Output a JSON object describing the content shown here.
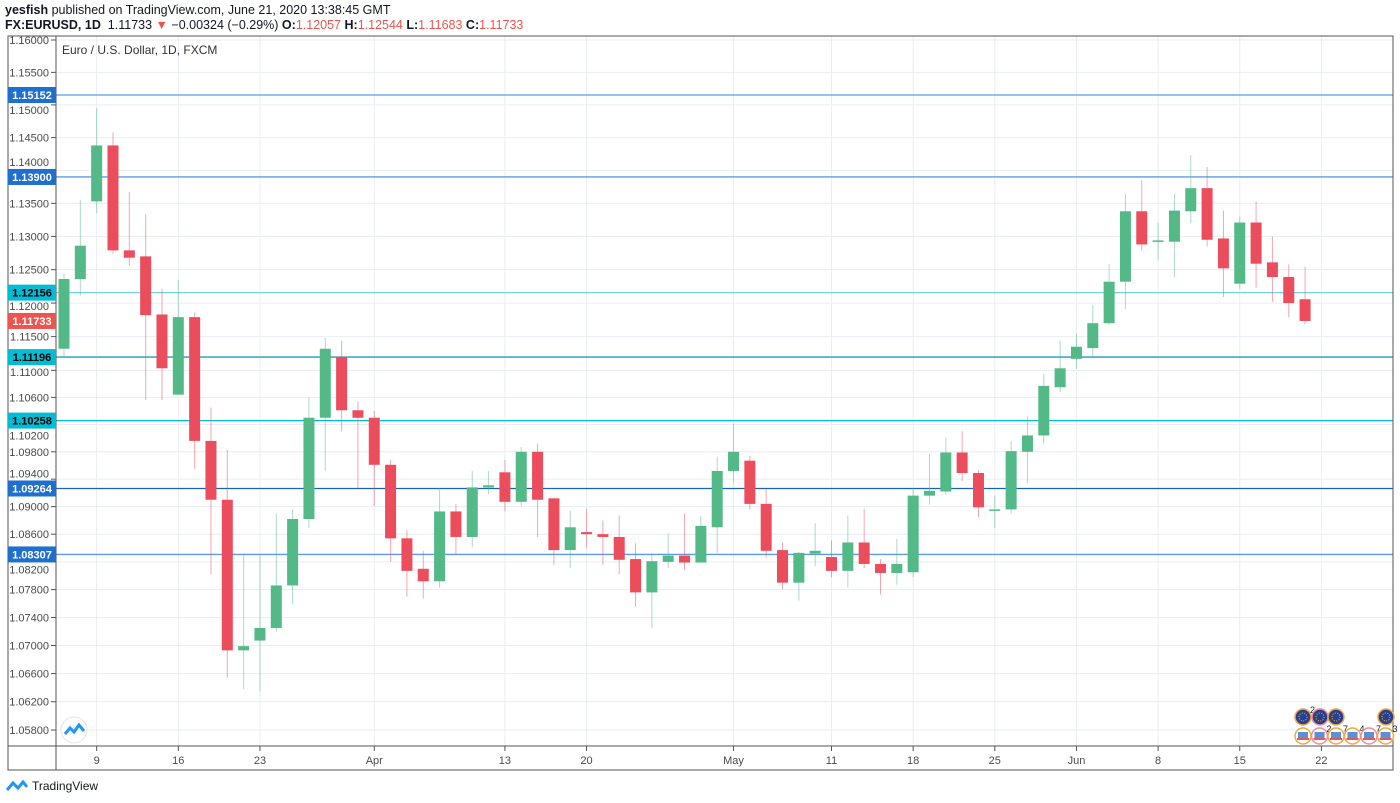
{
  "header": {
    "author": "yesfish",
    "published": "published on TradingView.com, June 21, 2020 13:38:45 GMT",
    "symbol": "FX:EURUSD, 1D",
    "last": "1.11733",
    "change": "−0.00324 (−0.29%)",
    "o_label": "O:",
    "o": "1.12057",
    "h_label": "H:",
    "h": "1.12544",
    "l_label": "L:",
    "l": "1.11683",
    "c_label": "C:",
    "c": "1.11733"
  },
  "footer": {
    "brand": "TradingView"
  },
  "colors": {
    "up": "#53b987",
    "down": "#eb4d5c",
    "blue": "#1e6fcf",
    "cyan": "#00bcd4",
    "red_label": "#ef5350",
    "grid": "#e9eef3"
  },
  "chart_data": {
    "type": "candlestick",
    "title": "Euro / U.S. Dollar, 1D, FXCM",
    "scale": "log",
    "ylim": [
      1.056,
      1.1612
    ],
    "y_ticks": [
      "1.16000",
      "1.15500",
      "1.15000",
      "1.14500",
      "1.14000",
      "1.13500",
      "1.13000",
      "1.12500",
      "1.12000",
      "1.11500",
      "1.11000",
      "1.10600",
      "1.10200",
      "1.09800",
      "1.09400",
      "1.09000",
      "1.08600",
      "1.08200",
      "1.07800",
      "1.07400",
      "1.07000",
      "1.06600",
      "1.06200",
      "1.05800"
    ],
    "x_labels": [
      {
        "label": "9",
        "bar": 2
      },
      {
        "label": "16",
        "bar": 7
      },
      {
        "label": "23",
        "bar": 12
      },
      {
        "label": "Apr",
        "bar": 19
      },
      {
        "label": "13",
        "bar": 27
      },
      {
        "label": "20",
        "bar": 32
      },
      {
        "label": "May",
        "bar": 41
      },
      {
        "label": "11",
        "bar": 47
      },
      {
        "label": "18",
        "bar": 52
      },
      {
        "label": "25",
        "bar": 57
      },
      {
        "label": "Jun",
        "bar": 62
      },
      {
        "label": "8",
        "bar": 67
      },
      {
        "label": "15",
        "bar": 72
      },
      {
        "label": "22",
        "bar": 77
      }
    ],
    "levels": [
      {
        "price": "1.15152",
        "style": "blue"
      },
      {
        "price": "1.13900",
        "style": "blue"
      },
      {
        "price": "1.12156",
        "style": "cyan-light"
      },
      {
        "price": "1.11196",
        "style": "teal"
      },
      {
        "price": "1.10258",
        "style": "cyan"
      },
      {
        "price": "1.09264",
        "style": "blue-dark"
      },
      {
        "price": "1.08307",
        "style": "blue"
      }
    ],
    "last_price": "1.11733",
    "ohlc": [
      [
        1.1132,
        1.1244,
        1.112,
        1.1236
      ],
      [
        1.1236,
        1.1355,
        1.1211,
        1.1286
      ],
      [
        1.1353,
        1.1495,
        1.1335,
        1.1438
      ],
      [
        1.1438,
        1.1458,
        1.1274,
        1.1279
      ],
      [
        1.1279,
        1.1367,
        1.1256,
        1.1268
      ],
      [
        1.127,
        1.1333,
        1.1056,
        1.1182
      ],
      [
        1.1183,
        1.1221,
        1.1056,
        1.1103
      ],
      [
        1.1064,
        1.1235,
        1.1064,
        1.1179
      ],
      [
        1.1179,
        1.1186,
        1.0955,
        1.0996
      ],
      [
        1.0996,
        1.1045,
        1.0802,
        1.091
      ],
      [
        1.091,
        1.0983,
        1.0654,
        1.0693
      ],
      [
        1.0693,
        1.0832,
        1.0638,
        1.0699
      ],
      [
        1.0707,
        1.0829,
        1.0635,
        1.0725
      ],
      [
        1.0725,
        1.089,
        1.072,
        1.0786
      ],
      [
        1.0786,
        1.0896,
        1.0759,
        1.0882
      ],
      [
        1.0882,
        1.106,
        1.0869,
        1.103
      ],
      [
        1.103,
        1.1148,
        1.0952,
        1.1132
      ],
      [
        1.112,
        1.1144,
        1.101,
        1.1041
      ],
      [
        1.1041,
        1.1054,
        1.0925,
        1.103
      ],
      [
        1.103,
        1.104,
        1.0901,
        1.0961
      ],
      [
        1.0961,
        1.0968,
        1.082,
        1.0854
      ],
      [
        1.0854,
        1.0866,
        1.077,
        1.0807
      ],
      [
        1.081,
        1.0836,
        1.0767,
        1.0792
      ],
      [
        1.0792,
        1.0927,
        1.0783,
        1.0893
      ],
      [
        1.0893,
        1.0904,
        1.083,
        1.0856
      ],
      [
        1.0856,
        1.0952,
        1.0841,
        1.0928
      ],
      [
        1.0928,
        1.0952,
        1.0918,
        1.0931
      ],
      [
        1.095,
        1.0968,
        1.0893,
        1.0907
      ],
      [
        1.0907,
        1.0987,
        1.0901,
        1.098
      ],
      [
        1.098,
        1.0992,
        1.0856,
        1.091
      ],
      [
        1.0912,
        1.0913,
        1.0816,
        1.0837
      ],
      [
        1.0837,
        1.0894,
        1.0811,
        1.087
      ],
      [
        1.0863,
        1.0897,
        1.084,
        1.086
      ],
      [
        1.086,
        1.088,
        1.0816,
        1.0856
      ],
      [
        1.0856,
        1.0887,
        1.0802,
        1.0823
      ],
      [
        1.0824,
        1.0847,
        1.0755,
        1.0776
      ],
      [
        1.0776,
        1.0832,
        1.0725,
        1.0821
      ],
      [
        1.082,
        1.0861,
        1.0811,
        1.0829
      ],
      [
        1.0829,
        1.089,
        1.0808,
        1.0819
      ],
      [
        1.0819,
        1.0887,
        1.0819,
        1.0872
      ],
      [
        1.087,
        1.0973,
        1.0833,
        1.0952
      ],
      [
        1.0952,
        1.1021,
        1.0934,
        1.098
      ],
      [
        1.0967,
        1.0974,
        1.0896,
        1.0904
      ],
      [
        1.0904,
        1.0926,
        1.0826,
        1.0836
      ],
      [
        1.0837,
        1.0848,
        1.078,
        1.079
      ],
      [
        1.079,
        1.0834,
        1.0764,
        1.0833
      ],
      [
        1.0832,
        1.0876,
        1.0814,
        1.0836
      ],
      [
        1.0827,
        1.0851,
        1.0798,
        1.0807
      ],
      [
        1.0807,
        1.0887,
        1.0783,
        1.0848
      ],
      [
        1.0848,
        1.0897,
        1.0811,
        1.0817
      ],
      [
        1.0817,
        1.0824,
        1.0773,
        1.0804
      ],
      [
        1.0804,
        1.0853,
        1.0787,
        1.0817
      ],
      [
        1.0805,
        1.0927,
        1.0798,
        1.0916
      ],
      [
        1.0916,
        1.0977,
        1.0903,
        1.0923
      ],
      [
        1.0922,
        1.1001,
        1.0917,
        1.0979
      ],
      [
        1.0979,
        1.101,
        1.0937,
        1.0949
      ],
      [
        1.0949,
        1.0953,
        1.0885,
        1.0899
      ],
      [
        1.0894,
        1.0916,
        1.0869,
        1.0896
      ],
      [
        1.0896,
        1.0996,
        1.089,
        1.0981
      ],
      [
        1.098,
        1.1032,
        1.0934,
        1.1004
      ],
      [
        1.1004,
        1.1095,
        1.0992,
        1.1077
      ],
      [
        1.1075,
        1.1144,
        1.1068,
        1.1103
      ],
      [
        1.1117,
        1.1155,
        1.1102,
        1.1135
      ],
      [
        1.1133,
        1.1197,
        1.1117,
        1.117
      ],
      [
        1.117,
        1.1258,
        1.1167,
        1.1232
      ],
      [
        1.1232,
        1.1364,
        1.1191,
        1.1338
      ],
      [
        1.1338,
        1.1385,
        1.1279,
        1.1288
      ],
      [
        1.1292,
        1.132,
        1.1265,
        1.1294
      ],
      [
        1.1292,
        1.1364,
        1.1239,
        1.1339
      ],
      [
        1.1338,
        1.1423,
        1.132,
        1.1373
      ],
      [
        1.1373,
        1.1405,
        1.1285,
        1.1295
      ],
      [
        1.1297,
        1.1339,
        1.1209,
        1.1252
      ],
      [
        1.1229,
        1.133,
        1.1221,
        1.1321
      ],
      [
        1.1321,
        1.1353,
        1.1223,
        1.1259
      ],
      [
        1.1261,
        1.13,
        1.1202,
        1.1239
      ],
      [
        1.1239,
        1.1258,
        1.1179,
        1.12
      ],
      [
        1.12057,
        1.12544,
        1.11683,
        1.11733
      ]
    ],
    "events": {
      "eu": [
        {
          "count": "2"
        },
        {
          "count": ""
        },
        {
          "count": ""
        },
        {
          "count": ""
        }
      ],
      "us": [
        {
          "count": ""
        },
        {
          "count": "2"
        },
        {
          "count": "7"
        },
        {
          "count": "4"
        },
        {
          "count": "7"
        },
        {
          "count": "3"
        }
      ]
    }
  }
}
